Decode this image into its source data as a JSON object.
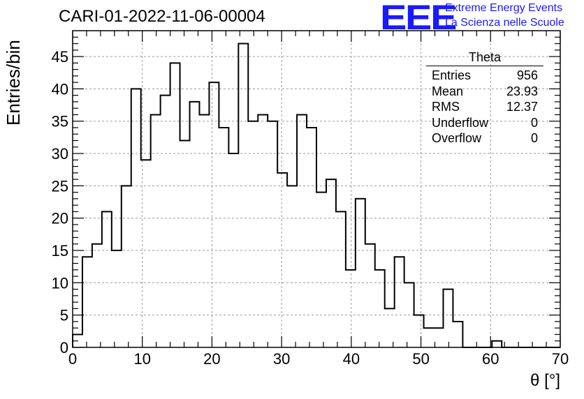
{
  "run_title": "CARI-01-2022-11-06-00004",
  "logo": {
    "text": "EEE",
    "line1": "Extreme Energy Events",
    "line2": "La Scienza nelle Scuole",
    "color": "#1a1aff"
  },
  "stats_box": {
    "title": "Theta",
    "rows": [
      {
        "label": "Entries",
        "value": "956"
      },
      {
        "label": "Mean",
        "value": "23.93"
      },
      {
        "label": "RMS",
        "value": "12.37"
      },
      {
        "label": "Underflow",
        "value": "0"
      },
      {
        "label": "Overflow",
        "value": "0"
      }
    ]
  },
  "chart_data": {
    "type": "bar",
    "title": "CARI-01-2022-11-06-00004",
    "xlabel": "θ [°]",
    "ylabel": "Entries/bin",
    "xlim": [
      0,
      70
    ],
    "ylim": [
      0,
      49
    ],
    "bin_width": 1.4,
    "bin_edges_start": 0,
    "values": [
      2,
      14,
      16,
      21,
      15,
      25,
      40,
      29,
      36,
      39,
      44,
      32,
      38,
      36,
      41,
      34,
      30,
      47,
      35,
      36,
      35,
      27,
      25,
      36,
      34,
      24,
      26,
      21,
      12,
      23,
      16,
      12,
      6,
      14,
      10,
      5,
      3,
      3,
      9,
      4,
      0,
      0,
      0,
      1,
      0,
      0,
      0,
      0,
      0,
      0
    ],
    "xticks": [
      0,
      10,
      20,
      30,
      40,
      50,
      60,
      70
    ],
    "yticks": [
      0,
      5,
      10,
      15,
      20,
      25,
      30,
      35,
      40,
      45
    ],
    "grid": true,
    "line_color": "#000000"
  }
}
